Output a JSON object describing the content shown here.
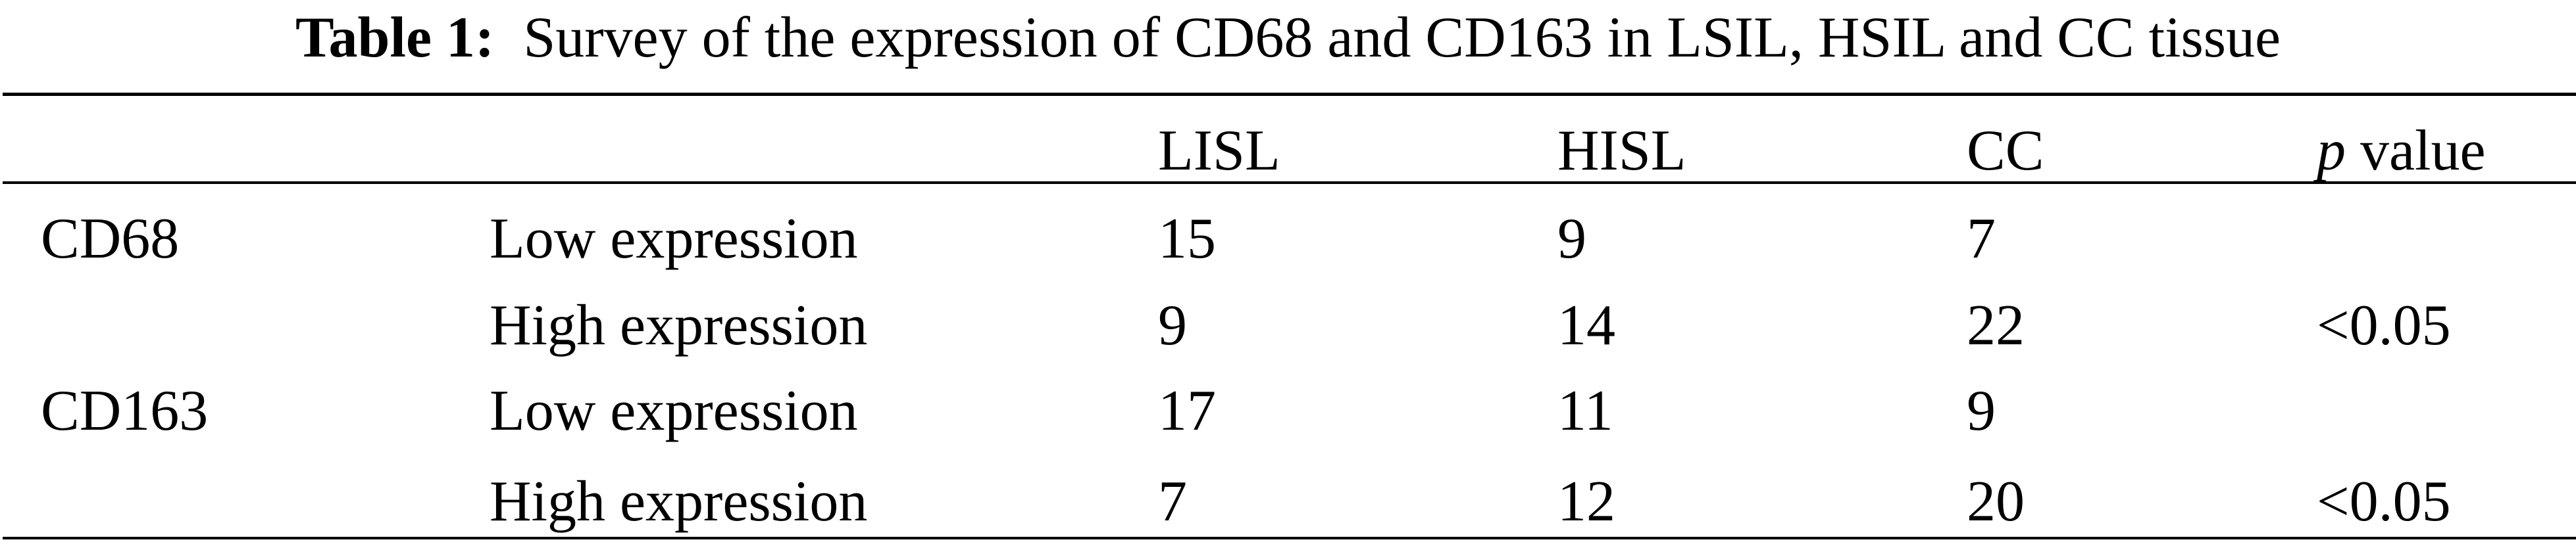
{
  "caption": {
    "label": "Table 1:",
    "text": "Survey of the expression of CD68 and CD163 in LSIL, HSIL and CC tissue"
  },
  "header": {
    "blank1": "",
    "blank2": "",
    "col1": "LISL",
    "col2": "HISL",
    "col3": "CC",
    "p_italic": "p",
    "p_rest": " value"
  },
  "rows": [
    {
      "marker": "CD68",
      "level": "Low expression",
      "lisl": "15",
      "hisl": "9",
      "cc": "7",
      "p": ""
    },
    {
      "marker": "",
      "level": "High expression",
      "lisl": "9",
      "hisl": "14",
      "cc": "22",
      "p": "<0.05"
    },
    {
      "marker": "CD163",
      "level": "Low expression",
      "lisl": "17",
      "hisl": "11",
      "cc": "9",
      "p": ""
    },
    {
      "marker": "",
      "level": "High expression",
      "lisl": "7",
      "hisl": "12",
      "cc": "20",
      "p": "<0.05"
    }
  ]
}
